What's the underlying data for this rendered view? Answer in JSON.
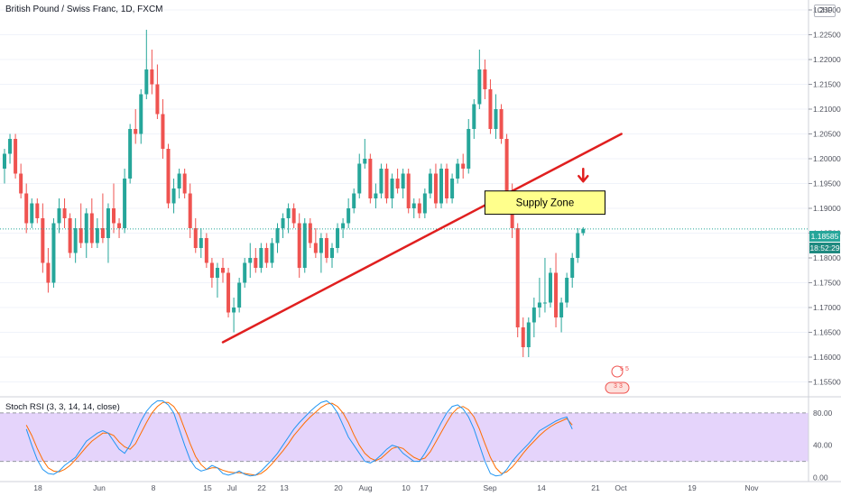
{
  "header": {
    "title": "British Pound / Swiss Franc, 1D, FXCM",
    "currency": "CHF"
  },
  "price_tags": {
    "last_price": "1.18585",
    "countdown": "18:52:29"
  },
  "annotation": {
    "supply_zone_label": "Supply Zone"
  },
  "events": {
    "earnings_1": "5",
    "earnings_2": "5",
    "div_1": "3",
    "div_2": "3"
  },
  "colors": {
    "up": "#26a69a",
    "down": "#ef5350",
    "trendline": "#e01f1f",
    "zone_fill": "#ffff8c",
    "rsi_band": "#e5d4fb",
    "k_line": "#2196f3",
    "d_line": "#ff6d00"
  },
  "chart_data": [
    {
      "type": "candlestick",
      "title": "British Pound / Swiss Franc, 1D, FXCM",
      "x_ticks": [
        "18",
        "Jun",
        "8",
        "15",
        "22",
        "Jul",
        "13",
        "20",
        "Aug",
        "10",
        "17",
        "Sep",
        "14",
        "21",
        "Oct",
        "19",
        "Nov"
      ],
      "y_ticks": [
        "1.23000",
        "1.22500",
        "1.22000",
        "1.21500",
        "1.21000",
        "1.20500",
        "1.20000",
        "1.19500",
        "1.19000",
        "1.18500",
        "1.18000",
        "1.17500",
        "1.17000",
        "1.16500",
        "1.16000",
        "1.15500"
      ],
      "ylim": [
        1.152,
        1.232
      ],
      "last_price": 1.18585,
      "candles": [
        [
          1.198,
          1.202,
          1.195,
          1.201
        ],
        [
          1.201,
          1.205,
          1.199,
          1.204
        ],
        [
          1.204,
          1.205,
          1.196,
          1.197
        ],
        [
          1.197,
          1.199,
          1.192,
          1.193
        ],
        [
          1.193,
          1.195,
          1.185,
          1.187
        ],
        [
          1.187,
          1.192,
          1.186,
          1.191
        ],
        [
          1.191,
          1.192,
          1.187,
          1.188
        ],
        [
          1.188,
          1.191,
          1.177,
          1.179
        ],
        [
          1.179,
          1.182,
          1.173,
          1.175
        ],
        [
          1.175,
          1.188,
          1.174,
          1.187
        ],
        [
          1.187,
          1.192,
          1.185,
          1.19
        ],
        [
          1.19,
          1.192,
          1.186,
          1.188
        ],
        [
          1.188,
          1.189,
          1.18,
          1.181
        ],
        [
          1.181,
          1.188,
          1.179,
          1.186
        ],
        [
          1.186,
          1.191,
          1.182,
          1.183
        ],
        [
          1.183,
          1.19,
          1.18,
          1.189
        ],
        [
          1.189,
          1.192,
          1.182,
          1.183
        ],
        [
          1.183,
          1.188,
          1.182,
          1.186
        ],
        [
          1.186,
          1.193,
          1.183,
          1.184
        ],
        [
          1.184,
          1.191,
          1.179,
          1.19
        ],
        [
          1.19,
          1.195,
          1.185,
          1.187
        ],
        [
          1.187,
          1.188,
          1.184,
          1.186
        ],
        [
          1.186,
          1.198,
          1.185,
          1.196
        ],
        [
          1.196,
          1.207,
          1.195,
          1.206
        ],
        [
          1.206,
          1.21,
          1.203,
          1.205
        ],
        [
          1.205,
          1.214,
          1.203,
          1.213
        ],
        [
          1.213,
          1.226,
          1.212,
          1.218
        ],
        [
          1.218,
          1.222,
          1.213,
          1.215
        ],
        [
          1.215,
          1.219,
          1.208,
          1.209
        ],
        [
          1.209,
          1.212,
          1.2,
          1.202
        ],
        [
          1.202,
          1.203,
          1.19,
          1.191
        ],
        [
          1.191,
          1.196,
          1.189,
          1.194
        ],
        [
          1.194,
          1.198,
          1.192,
          1.197
        ],
        [
          1.197,
          1.198,
          1.192,
          1.193
        ],
        [
          1.193,
          1.195,
          1.184,
          1.186
        ],
        [
          1.186,
          1.188,
          1.181,
          1.182
        ],
        [
          1.182,
          1.186,
          1.18,
          1.184
        ],
        [
          1.184,
          1.185,
          1.178,
          1.179
        ],
        [
          1.179,
          1.18,
          1.174,
          1.176
        ],
        [
          1.176,
          1.179,
          1.172,
          1.178
        ],
        [
          1.178,
          1.18,
          1.175,
          1.177
        ],
        [
          1.177,
          1.178,
          1.168,
          1.169
        ],
        [
          1.169,
          1.172,
          1.165,
          1.17
        ],
        [
          1.17,
          1.176,
          1.169,
          1.175
        ],
        [
          1.175,
          1.18,
          1.174,
          1.179
        ],
        [
          1.179,
          1.183,
          1.176,
          1.18
        ],
        [
          1.18,
          1.182,
          1.177,
          1.178
        ],
        [
          1.178,
          1.183,
          1.177,
          1.182
        ],
        [
          1.182,
          1.183,
          1.178,
          1.179
        ],
        [
          1.179,
          1.184,
          1.178,
          1.183
        ],
        [
          1.183,
          1.187,
          1.181,
          1.186
        ],
        [
          1.186,
          1.189,
          1.184,
          1.188
        ],
        [
          1.188,
          1.191,
          1.185,
          1.19
        ],
        [
          1.19,
          1.191,
          1.186,
          1.187
        ],
        [
          1.187,
          1.189,
          1.176,
          1.178
        ],
        [
          1.178,
          1.188,
          1.177,
          1.187
        ],
        [
          1.187,
          1.188,
          1.182,
          1.183
        ],
        [
          1.183,
          1.186,
          1.18,
          1.181
        ],
        [
          1.181,
          1.185,
          1.177,
          1.184
        ],
        [
          1.184,
          1.185,
          1.179,
          1.18
        ],
        [
          1.18,
          1.183,
          1.178,
          1.182
        ],
        [
          1.182,
          1.187,
          1.181,
          1.186
        ],
        [
          1.186,
          1.188,
          1.184,
          1.187
        ],
        [
          1.187,
          1.192,
          1.186,
          1.19
        ],
        [
          1.19,
          1.194,
          1.189,
          1.193
        ],
        [
          1.193,
          1.201,
          1.192,
          1.199
        ],
        [
          1.199,
          1.204,
          1.198,
          1.2
        ],
        [
          1.2,
          1.201,
          1.191,
          1.192
        ],
        [
          1.192,
          1.195,
          1.19,
          1.193
        ],
        [
          1.193,
          1.199,
          1.192,
          1.198
        ],
        [
          1.198,
          1.199,
          1.191,
          1.192
        ],
        [
          1.192,
          1.197,
          1.19,
          1.196
        ],
        [
          1.196,
          1.198,
          1.193,
          1.194
        ],
        [
          1.194,
          1.198,
          1.192,
          1.197
        ],
        [
          1.197,
          1.198,
          1.189,
          1.19
        ],
        [
          1.19,
          1.192,
          1.188,
          1.191
        ],
        [
          1.191,
          1.192,
          1.188,
          1.189
        ],
        [
          1.189,
          1.194,
          1.188,
          1.193
        ],
        [
          1.193,
          1.198,
          1.192,
          1.197
        ],
        [
          1.197,
          1.199,
          1.19,
          1.191
        ],
        [
          1.191,
          1.199,
          1.19,
          1.198
        ],
        [
          1.198,
          1.199,
          1.191,
          1.192
        ],
        [
          1.192,
          1.197,
          1.191,
          1.196
        ],
        [
          1.196,
          1.2,
          1.195,
          1.199
        ],
        [
          1.199,
          1.201,
          1.196,
          1.198
        ],
        [
          1.198,
          1.208,
          1.197,
          1.206
        ],
        [
          1.206,
          1.212,
          1.204,
          1.211
        ],
        [
          1.211,
          1.222,
          1.21,
          1.218
        ],
        [
          1.218,
          1.22,
          1.212,
          1.214
        ],
        [
          1.214,
          1.216,
          1.205,
          1.206
        ],
        [
          1.206,
          1.213,
          1.204,
          1.21
        ],
        [
          1.21,
          1.211,
          1.203,
          1.204
        ],
        [
          1.204,
          1.205,
          1.192,
          1.193
        ],
        [
          1.193,
          1.195,
          1.184,
          1.186
        ],
        [
          1.186,
          1.187,
          1.164,
          1.166
        ],
        [
          1.166,
          1.168,
          1.16,
          1.162
        ],
        [
          1.162,
          1.168,
          1.16,
          1.167
        ],
        [
          1.167,
          1.172,
          1.164,
          1.17
        ],
        [
          1.17,
          1.176,
          1.168,
          1.171
        ],
        [
          1.171,
          1.18,
          1.169,
          1.171
        ],
        [
          1.171,
          1.178,
          1.17,
          1.177
        ],
        [
          1.177,
          1.181,
          1.166,
          1.168
        ],
        [
          1.168,
          1.172,
          1.165,
          1.171
        ],
        [
          1.171,
          1.177,
          1.17,
          1.176
        ],
        [
          1.176,
          1.181,
          1.174,
          1.18
        ],
        [
          1.18,
          1.186,
          1.179,
          1.185
        ],
        [
          1.185,
          1.1862,
          1.1845,
          1.18585
        ]
      ],
      "trendline": {
        "start": [
          40,
          1.163
        ],
        "end": [
          113,
          1.205
        ]
      },
      "supply_zone": {
        "label": "Supply Zone",
        "top": 1.1935,
        "bottom": 1.1888,
        "from_index": 88,
        "to_index": 110
      },
      "down_arrow": {
        "index": 106,
        "price": 1.1965
      }
    },
    {
      "type": "line",
      "title": "Stoch RSI (3, 3, 14, 14, close)",
      "y_ticks": [
        "80.00",
        "40.00",
        "0.00"
      ],
      "ylim": [
        -5,
        100
      ],
      "band": [
        20,
        80
      ],
      "series": [
        {
          "name": "K",
          "values": [
            60,
            40,
            22,
            10,
            5,
            4,
            8,
            15,
            20,
            25,
            35,
            45,
            50,
            55,
            58,
            55,
            45,
            35,
            30,
            40,
            55,
            70,
            82,
            90,
            95,
            95,
            90,
            80,
            60,
            40,
            22,
            12,
            8,
            10,
            15,
            12,
            5,
            3,
            5,
            8,
            4,
            2,
            3,
            8,
            15,
            22,
            30,
            40,
            50,
            60,
            68,
            75,
            82,
            88,
            93,
            95,
            90,
            80,
            65,
            50,
            40,
            30,
            20,
            18,
            22,
            28,
            35,
            40,
            38,
            30,
            25,
            20,
            20,
            30,
            42,
            55,
            68,
            80,
            88,
            90,
            85,
            75,
            60,
            40,
            20,
            5,
            2,
            3,
            10,
            20,
            28,
            35,
            42,
            50,
            58,
            62,
            66,
            70,
            73,
            75,
            60
          ]
        },
        {
          "name": "D",
          "values": [
            65,
            52,
            36,
            22,
            12,
            8,
            7,
            10,
            15,
            22,
            30,
            38,
            45,
            50,
            55,
            55,
            52,
            44,
            38,
            35,
            42,
            55,
            68,
            80,
            88,
            93,
            93,
            88,
            78,
            60,
            42,
            26,
            16,
            10,
            12,
            12,
            9,
            7,
            6,
            6,
            5,
            4,
            3,
            5,
            10,
            17,
            25,
            33,
            42,
            52,
            60,
            68,
            75,
            81,
            87,
            91,
            92,
            88,
            80,
            68,
            53,
            40,
            30,
            24,
            21,
            24,
            30,
            36,
            38,
            36,
            30,
            25,
            22,
            24,
            32,
            44,
            56,
            68,
            79,
            86,
            88,
            84,
            75,
            60,
            42,
            25,
            12,
            5,
            7,
            13,
            21,
            30,
            38,
            45,
            52,
            58,
            63,
            67,
            70,
            73,
            65
          ]
        }
      ]
    }
  ]
}
